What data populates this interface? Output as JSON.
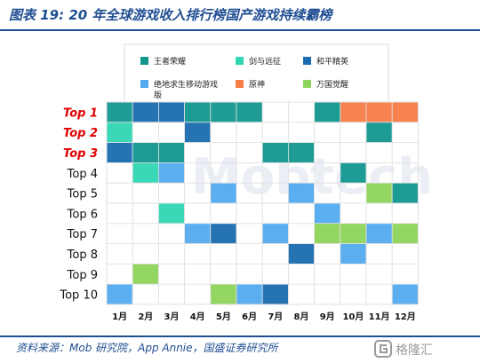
{
  "title": "图表 19: 20 年全球游戏收入排行榜国产游戏持续霸榜",
  "source": "资料来源：Mob 研究院，App Annie，国盛证券研究所",
  "watermark": "格隆汇",
  "chart_data": {
    "type": "heatmap",
    "columns": [
      "1月",
      "2月",
      "3月",
      "4月",
      "5月",
      "6月",
      "7月",
      "8月",
      "9月",
      "10月",
      "11月",
      "12月"
    ],
    "rows": [
      "Top 1",
      "Top 2",
      "Top 3",
      "Top 4",
      "Top 5",
      "Top 6",
      "Top 7",
      "Top 8",
      "Top 9",
      "Top 10"
    ],
    "highlighted_rows": [
      "Top 1",
      "Top 2",
      "Top 3"
    ],
    "highlight_color": "#e00000",
    "legend": [
      {
        "key": "wzry",
        "label": "王者荣耀",
        "color": "#12968f"
      },
      {
        "key": "jywz",
        "label": "剑与远征",
        "color": "#2fd6b3"
      },
      {
        "key": "hpjy",
        "label": "和平精英",
        "color": "#1a6bb0"
      },
      {
        "key": "jdqs",
        "label": "绝地求生移动游戏版",
        "color": "#52aaee"
      },
      {
        "key": "ys",
        "label": "原神",
        "color": "#f67b46"
      },
      {
        "key": "wgjx",
        "label": "万国觉醒",
        "color": "#8ed45a"
      }
    ],
    "legend_position": "top",
    "grid": [
      [
        "wzry",
        "hpjy",
        "hpjy",
        "wzry",
        "wzry",
        "wzry",
        null,
        null,
        "wzry",
        "ys",
        "ys",
        "ys"
      ],
      [
        "jywz",
        null,
        null,
        "hpjy",
        null,
        null,
        null,
        null,
        null,
        null,
        "wzry",
        null
      ],
      [
        "hpjy",
        "wzry",
        "wzry",
        null,
        null,
        null,
        "wzry",
        "wzry",
        null,
        null,
        null,
        null
      ],
      [
        null,
        "jywz",
        "jdqs",
        null,
        null,
        null,
        null,
        null,
        null,
        "wzry",
        null,
        null
      ],
      [
        null,
        null,
        null,
        null,
        "jdqs",
        null,
        null,
        "jdqs",
        null,
        null,
        "wgjx",
        "wzry"
      ],
      [
        null,
        null,
        "jywz",
        null,
        null,
        null,
        null,
        null,
        "jdqs",
        null,
        null,
        null
      ],
      [
        null,
        null,
        null,
        "jdqs",
        "hpjy",
        null,
        "jdqs",
        null,
        "wgjx",
        "wgjx",
        "jdqs",
        "wgjx"
      ],
      [
        null,
        null,
        null,
        null,
        null,
        null,
        null,
        "hpjy",
        null,
        "jdqs",
        null,
        null
      ],
      [
        null,
        "wgjx",
        null,
        null,
        null,
        null,
        null,
        null,
        null,
        null,
        null,
        null
      ],
      [
        "jdqs",
        null,
        null,
        null,
        "wgjx",
        "jdqs",
        "hpjy",
        null,
        null,
        null,
        null,
        "jdqs"
      ]
    ]
  }
}
